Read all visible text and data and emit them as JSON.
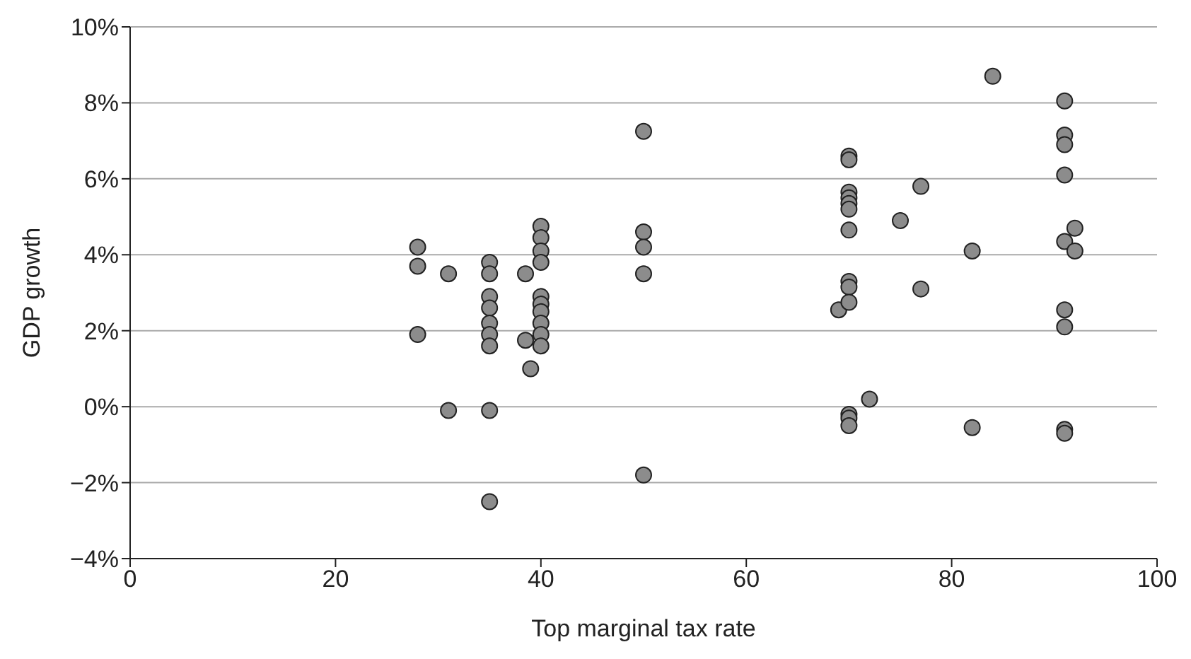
{
  "chart_data": {
    "type": "scatter",
    "xlabel": "Top marginal tax rate",
    "ylabel": "GDP growth",
    "x": [
      28,
      28,
      28,
      31,
      31,
      35,
      35,
      35,
      35,
      35,
      35,
      35,
      35,
      35,
      38.5,
      38.5,
      39,
      40,
      40,
      40,
      40,
      40,
      40,
      40,
      40,
      40,
      40,
      50,
      50,
      50,
      50,
      50,
      69,
      70,
      70,
      70,
      70,
      70,
      70,
      70,
      70,
      70,
      70,
      70,
      70,
      70,
      72,
      75,
      77,
      77,
      82,
      82,
      84,
      91,
      91,
      91,
      91,
      91,
      91,
      91,
      91,
      91,
      92,
      92
    ],
    "values": [
      4.2,
      3.7,
      1.9,
      3.5,
      -0.1,
      3.8,
      3.5,
      2.9,
      2.6,
      2.2,
      1.9,
      1.6,
      -0.1,
      -2.5,
      3.5,
      1.75,
      1.0,
      4.75,
      4.45,
      4.1,
      3.8,
      2.9,
      2.7,
      2.5,
      2.2,
      1.9,
      1.6,
      7.25,
      4.6,
      4.2,
      3.5,
      -1.8,
      2.55,
      6.6,
      6.5,
      5.65,
      5.5,
      5.35,
      5.2,
      4.65,
      3.3,
      3.15,
      2.75,
      -0.2,
      -0.3,
      -0.5,
      0.2,
      4.9,
      5.8,
      3.1,
      4.1,
      -0.55,
      8.7,
      8.05,
      7.15,
      6.9,
      6.1,
      4.35,
      2.55,
      2.1,
      -0.6,
      -0.7,
      4.7,
      4.1
    ],
    "color": "#8c8c8c",
    "marker": "circle",
    "xlim": [
      0,
      100
    ],
    "xticks": [
      0,
      20,
      40,
      60,
      80,
      100
    ],
    "ylim": [
      -4,
      10
    ],
    "yticks": [
      {
        "value": -4,
        "label": "−4%"
      },
      {
        "value": -2,
        "label": "−2%"
      },
      {
        "value": 0,
        "label": "0%"
      },
      {
        "value": 2,
        "label": "2%"
      },
      {
        "value": 4,
        "label": "4%"
      },
      {
        "value": 6,
        "label": "6%"
      },
      {
        "value": 8,
        "label": "8%"
      },
      {
        "value": 10,
        "label": "10%"
      }
    ],
    "grid": "y"
  }
}
